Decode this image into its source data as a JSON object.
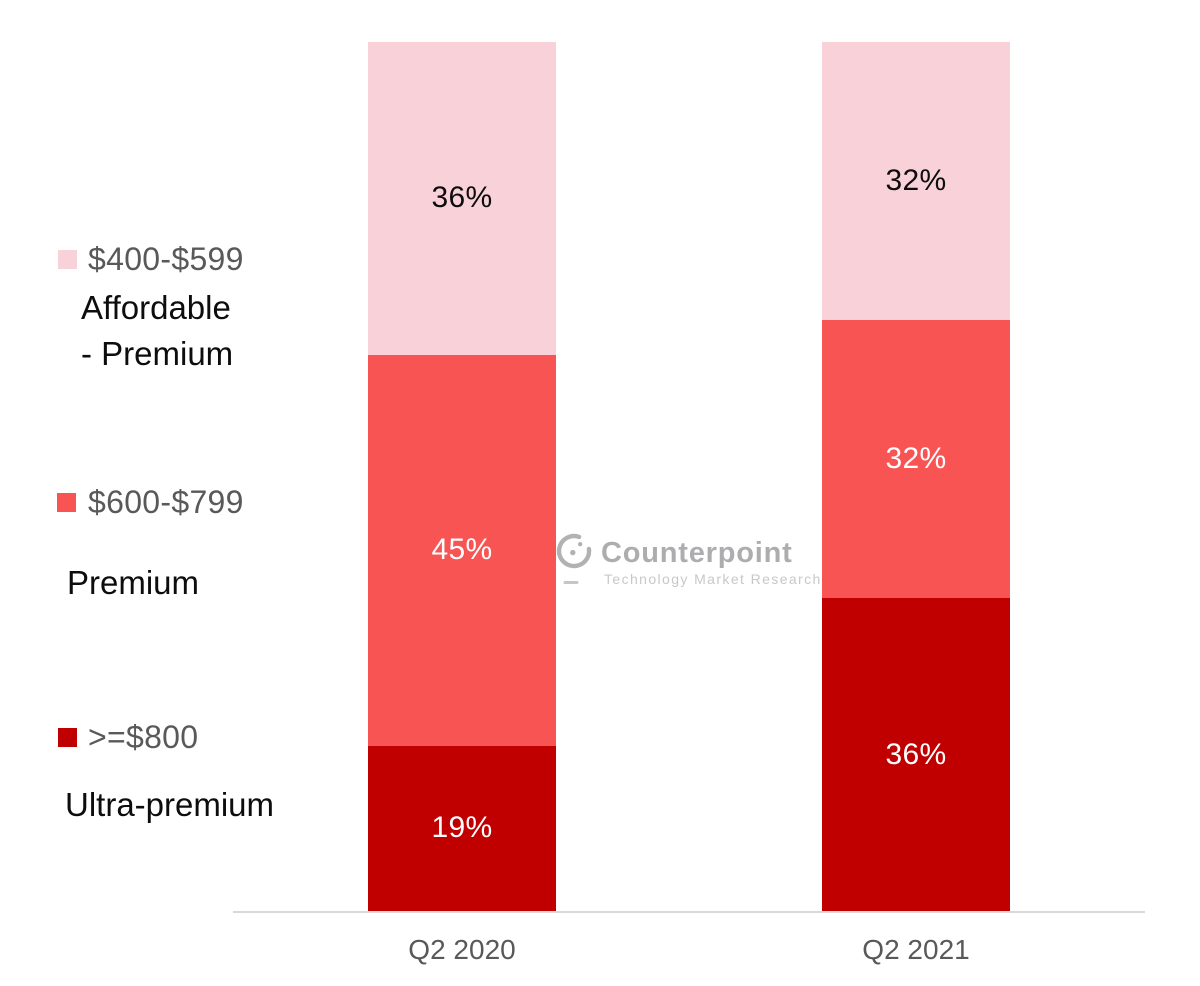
{
  "chart_data": {
    "type": "bar",
    "stacked": true,
    "unit": "%",
    "categories": [
      "Q2 2020",
      "Q2 2021"
    ],
    "series": [
      {
        "name": "$400-$599 Affordable - Premium",
        "values": [
          36,
          32
        ],
        "color": "#F8D2D8",
        "label_color": "#0d0d0d"
      },
      {
        "name": "$600-$799 Premium",
        "values": [
          45,
          32
        ],
        "color": "#F95454",
        "label_color": "#ffffff"
      },
      {
        "name": ">=$800 Ultra-premium",
        "values": [
          19,
          36
        ],
        "color": "#C00000",
        "label_color": "#ffffff"
      }
    ],
    "value_label_format": "{value}%",
    "ylim": [
      0,
      100
    ],
    "grid": false,
    "legend_position": "left",
    "stack_order_top_to_bottom": [
      "$400-$599 Affordable - Premium",
      "$600-$799 Premium",
      ">=$800 Ultra-premium"
    ]
  },
  "legend": {
    "items": [
      {
        "price_range": "$400-$599",
        "category_lines": [
          "Affordable",
          "- Premium"
        ],
        "color": "#F8D2D8"
      },
      {
        "price_range": "$600-$799",
        "category_lines": [
          "Premium"
        ],
        "color": "#F95454"
      },
      {
        "price_range": ">=$800",
        "category_lines": [
          "Ultra-premium"
        ],
        "color": "#C00000"
      }
    ]
  },
  "x_axis": {
    "labels": [
      "Q2 2020",
      "Q2 2021"
    ]
  },
  "watermark": {
    "brand": "Counterpoint",
    "tagline": "Technology Market Research"
  },
  "colors": {
    "affordable_premium": "#F8D2D8",
    "premium": "#F95454",
    "ultra_premium": "#C00000",
    "axis_line": "#D9D9D9",
    "axis_label_text": "#595959",
    "legend_price_text": "#595959",
    "legend_category_text": "#0d0d0d",
    "watermark_gray": "#ADADAF"
  }
}
